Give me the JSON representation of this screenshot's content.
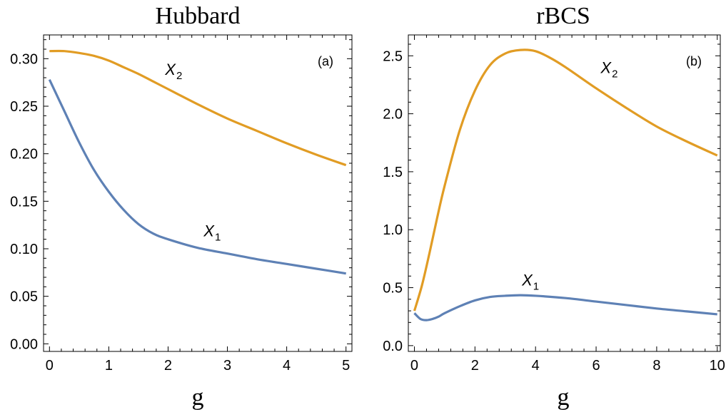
{
  "chart_data": [
    {
      "type": "line",
      "title": "Hubbard",
      "xlabel": "g",
      "ylabel": "",
      "panel_label": "(a)",
      "xlim": [
        -0.1,
        5.1
      ],
      "ylim": [
        -0.008,
        0.325
      ],
      "xticks": [
        0,
        1,
        2,
        3,
        4,
        5
      ],
      "xtick_labels": [
        "0",
        "1",
        "2",
        "3",
        "4",
        "5"
      ],
      "yticks": [
        0.0,
        0.05,
        0.1,
        0.15,
        0.2,
        0.25,
        0.3
      ],
      "ytick_labels": [
        "0.00",
        "0.05",
        "0.10",
        "0.15",
        "0.20",
        "0.25",
        "0.30"
      ],
      "series": [
        {
          "name": "X1",
          "label_text": "X",
          "label_sub": "1",
          "label_at": [
            2.6,
            0.113
          ],
          "color": "#5E81B5",
          "x": [
            0,
            0.25,
            0.5,
            0.75,
            1.0,
            1.25,
            1.5,
            1.75,
            2.0,
            2.5,
            3.0,
            3.5,
            4.0,
            4.5,
            5.0
          ],
          "y": [
            0.278,
            0.245,
            0.212,
            0.183,
            0.16,
            0.141,
            0.126,
            0.116,
            0.11,
            0.101,
            0.095,
            0.089,
            0.084,
            0.079,
            0.074
          ]
        },
        {
          "name": "X2",
          "label_text": "X",
          "label_sub": "2",
          "label_at": [
            1.95,
            0.283
          ],
          "color": "#E19C24",
          "x": [
            0,
            0.25,
            0.5,
            0.75,
            1.0,
            1.25,
            1.5,
            1.75,
            2.0,
            2.5,
            3.0,
            3.5,
            4.0,
            4.5,
            5.0
          ],
          "y": [
            0.308,
            0.308,
            0.306,
            0.303,
            0.298,
            0.291,
            0.284,
            0.276,
            0.268,
            0.252,
            0.237,
            0.224,
            0.211,
            0.199,
            0.188
          ]
        }
      ]
    },
    {
      "type": "line",
      "title": "rBCS",
      "xlabel": "g",
      "ylabel": "",
      "panel_label": "(b)",
      "xlim": [
        -0.2,
        10.1
      ],
      "ylim": [
        -0.05,
        2.68
      ],
      "xticks": [
        0,
        2,
        4,
        6,
        8,
        10
      ],
      "xtick_labels": [
        "0",
        "2",
        "4",
        "6",
        "8",
        "10"
      ],
      "yticks": [
        0.0,
        0.5,
        1.0,
        1.5,
        2.0,
        2.5
      ],
      "ytick_labels": [
        "0.0",
        "0.5",
        "1.0",
        "1.5",
        "2.0",
        "2.5"
      ],
      "series": [
        {
          "name": "X1",
          "label_text": "X",
          "label_sub": "1",
          "label_at": [
            3.55,
            0.52
          ],
          "color": "#5E81B5",
          "x": [
            0.0,
            0.2,
            0.4,
            0.6,
            0.8,
            1.0,
            1.5,
            2.0,
            2.5,
            3.0,
            3.5,
            4.0,
            5.0,
            6.0,
            7.0,
            8.0,
            9.0,
            10.0
          ],
          "y": [
            0.28,
            0.23,
            0.22,
            0.23,
            0.25,
            0.28,
            0.34,
            0.39,
            0.42,
            0.43,
            0.435,
            0.43,
            0.41,
            0.38,
            0.35,
            0.32,
            0.295,
            0.27
          ]
        },
        {
          "name": "X2",
          "label_text": "X",
          "label_sub": "2",
          "label_at": [
            6.15,
            2.35
          ],
          "color": "#E19C24",
          "x": [
            0.0,
            0.25,
            0.5,
            0.75,
            1.0,
            1.5,
            2.0,
            2.5,
            3.0,
            3.5,
            4.0,
            4.5,
            5.0,
            6.0,
            7.0,
            8.0,
            9.0,
            10.0
          ],
          "y": [
            0.3,
            0.52,
            0.8,
            1.1,
            1.38,
            1.86,
            2.2,
            2.42,
            2.52,
            2.55,
            2.54,
            2.48,
            2.4,
            2.22,
            2.05,
            1.89,
            1.76,
            1.64
          ]
        }
      ]
    }
  ]
}
